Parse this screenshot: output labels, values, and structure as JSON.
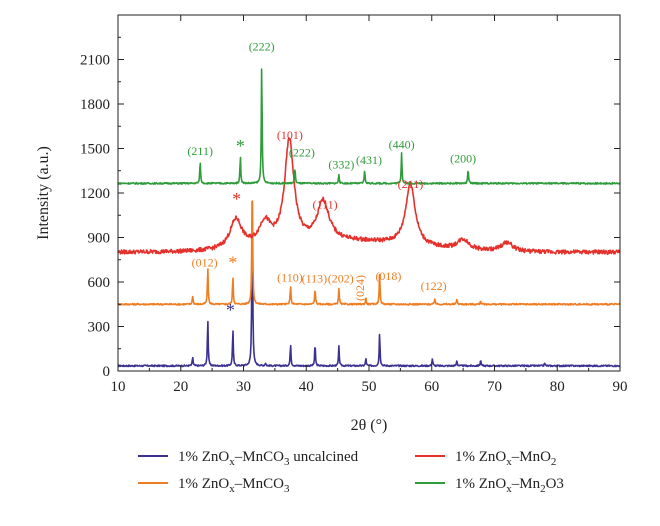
{
  "chart_data": {
    "type": "line",
    "xlabel": "2θ (°)",
    "ylabel": "Intensity (a.u.)",
    "xlim": [
      10,
      90
    ],
    "ylim": [
      0,
      2400
    ],
    "x_ticks": [
      "10",
      "20",
      "30",
      "40",
      "50",
      "60",
      "70",
      "80",
      "90"
    ],
    "y_ticks": [
      "0",
      "300",
      "600",
      "900",
      "1200",
      "1500",
      "1800",
      "2100"
    ],
    "grid": false,
    "legend_position": "bottom",
    "series": [
      {
        "name": "1% ZnOx–MnCO3 uncalcined",
        "legend_label": "1% ZnO",
        "legend_sub": "x",
        "legend_rest": "–MnCO",
        "legend_sub2": "3",
        "legend_tail": " uncalcined",
        "color": "#3a3191",
        "baseline": 35,
        "peaks": [
          [
            21.9,
            60
          ],
          [
            24.3,
            320
          ],
          [
            28.3,
            250
          ],
          [
            31.4,
            1280
          ],
          [
            33.5,
            20
          ],
          [
            37.5,
            150
          ],
          [
            41.4,
            150
          ],
          [
            45.2,
            130
          ],
          [
            49.5,
            50
          ],
          [
            51.7,
            230
          ],
          [
            60.1,
            50
          ],
          [
            64.0,
            35
          ],
          [
            67.8,
            40
          ],
          [
            78.0,
            20
          ]
        ]
      },
      {
        "name": "1% ZnOx–MnCO3",
        "legend_label": "1% ZnO",
        "legend_sub": "x",
        "legend_rest": "–MnCO",
        "legend_sub2": "3",
        "legend_tail": "",
        "color": "#ef7d22",
        "baseline": 450,
        "peaks": [
          [
            21.9,
            60
          ],
          [
            24.3,
            250
          ],
          [
            28.3,
            190
          ],
          [
            31.4,
            900
          ],
          [
            37.5,
            130
          ],
          [
            41.4,
            110
          ],
          [
            45.2,
            110
          ],
          [
            49.5,
            40
          ],
          [
            51.7,
            220
          ],
          [
            60.5,
            40
          ],
          [
            64.0,
            35
          ],
          [
            67.8,
            25
          ]
        ]
      },
      {
        "name": "1% ZnOx–MnO2",
        "legend_label": "1% ZnO",
        "legend_sub": "x",
        "legend_rest": "–MnO",
        "legend_sub2": "2",
        "legend_tail": "",
        "color": "#e5312c",
        "baseline": 800,
        "peaks": [
          [
            28.8,
            200
          ],
          [
            33.4,
            160
          ],
          [
            37.3,
            700
          ],
          [
            42.7,
            270
          ],
          [
            56.6,
            420
          ],
          [
            65.0,
            70
          ],
          [
            72.0,
            60
          ]
        ]
      },
      {
        "name": "1% ZnOx–Mn2O3",
        "legend_label": "1% ZnO",
        "legend_sub": "x",
        "legend_rest": "–Mn",
        "legend_sub2": "2",
        "legend_tail": "O3",
        "color": "#2e9c3a",
        "baseline": 1265,
        "peaks": [
          [
            23.1,
            150
          ],
          [
            29.5,
            190
          ],
          [
            32.9,
            830
          ],
          [
            38.2,
            110
          ],
          [
            45.2,
            60
          ],
          [
            49.3,
            90
          ],
          [
            55.2,
            210
          ],
          [
            65.8,
            100
          ]
        ]
      }
    ],
    "annotations": [
      {
        "text": "(222)",
        "x": 32.9,
        "y": 2160,
        "color": "#2e9c3a"
      },
      {
        "text": "(211)",
        "x": 23.1,
        "y": 1455,
        "color": "#2e9c3a"
      },
      {
        "text": "*",
        "x": 29.5,
        "y": 1475,
        "color": "#2e9c3a"
      },
      {
        "text": "(101)",
        "x": 37.4,
        "y": 1565,
        "color": "#e5312c"
      },
      {
        "text": "(222)",
        "x": 39.3,
        "y": 1445,
        "color": "#2e9c3a"
      },
      {
        "text": "(332)",
        "x": 45.6,
        "y": 1365,
        "color": "#2e9c3a"
      },
      {
        "text": "(431)",
        "x": 50.0,
        "y": 1395,
        "color": "#2e9c3a"
      },
      {
        "text": "(440)",
        "x": 55.2,
        "y": 1500,
        "color": "#2e9c3a"
      },
      {
        "text": "(200)",
        "x": 65.0,
        "y": 1405,
        "color": "#2e9c3a"
      },
      {
        "text": "*",
        "x": 28.9,
        "y": 1120,
        "color": "#e5312c"
      },
      {
        "text": "(111)",
        "x": 43.0,
        "y": 1095,
        "color": "#e5312c"
      },
      {
        "text": "(211)",
        "x": 56.6,
        "y": 1235,
        "color": "#e5312c"
      },
      {
        "text": "(012)",
        "x": 23.8,
        "y": 705,
        "color": "#ef7d22"
      },
      {
        "text": "*",
        "x": 28.3,
        "y": 690,
        "color": "#ef7d22"
      },
      {
        "text": "(110)",
        "x": 37.4,
        "y": 605,
        "color": "#ef7d22"
      },
      {
        "text": "(113)",
        "x": 41.3,
        "y": 595,
        "color": "#ef7d22"
      },
      {
        "text": "(202)",
        "x": 45.5,
        "y": 595,
        "color": "#ef7d22"
      },
      {
        "text": "(024)",
        "x": 49.2,
        "y": 560,
        "color": "#ef7d22",
        "rotate": true
      },
      {
        "text": "(018)",
        "x": 53.1,
        "y": 615,
        "color": "#ef7d22"
      },
      {
        "text": "(122)",
        "x": 60.3,
        "y": 545,
        "color": "#ef7d22"
      },
      {
        "text": "*",
        "x": 27.9,
        "y": 370,
        "color": "#3a3191"
      }
    ]
  }
}
